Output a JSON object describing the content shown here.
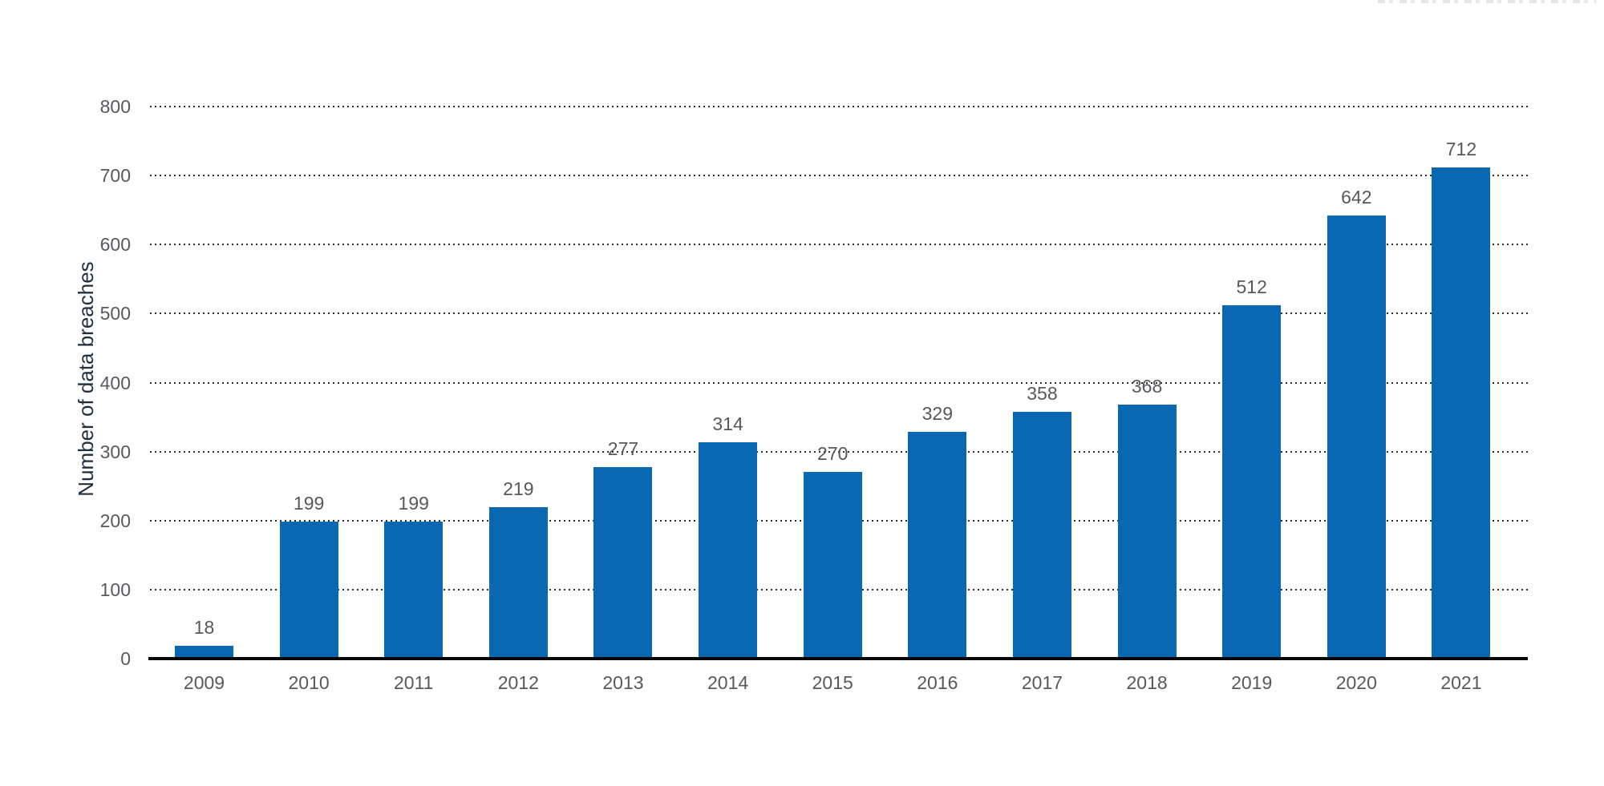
{
  "chart_data": {
    "type": "bar",
    "title": "",
    "ylabel": "Number of data breaches",
    "xlabel": "",
    "categories": [
      "2009",
      "2010",
      "2011",
      "2012",
      "2013",
      "2014",
      "2015",
      "2016",
      "2017",
      "2018",
      "2019",
      "2020",
      "2021"
    ],
    "values": [
      18,
      199,
      199,
      219,
      277,
      314,
      270,
      329,
      358,
      368,
      512,
      642,
      712
    ],
    "ylim": [
      0,
      800
    ],
    "yticks": [
      0,
      100,
      200,
      300,
      400,
      500,
      600,
      700,
      800
    ],
    "grid": "horizontal-dotted",
    "legend": "none",
    "bar_color": "#0a68b2",
    "tick_label_color": "#56595e",
    "value_label_color": "#55585c",
    "axis_title_color": "#1e2f3f",
    "baseline_color": "#050505",
    "background_color": "#ffffff"
  }
}
